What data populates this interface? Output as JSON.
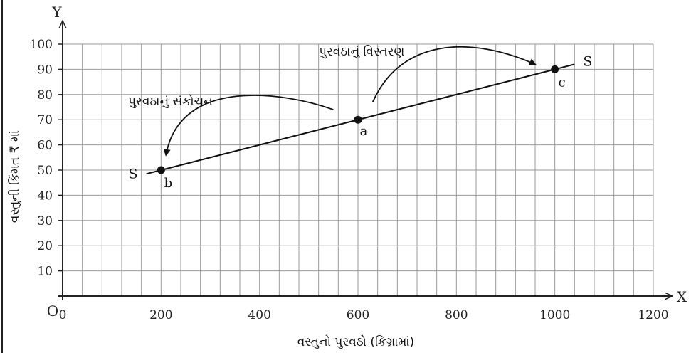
{
  "chart_data": {
    "type": "line",
    "xlabel": "વસ્તુનો પુરવઠો (કિગ્રામાં)",
    "ylabel": "વસ્તુની કિંમત ₹ માં",
    "xlim": [
      0,
      1200
    ],
    "ylim": [
      0,
      100
    ],
    "x_ticks": [
      0,
      200,
      400,
      600,
      800,
      1000,
      1200
    ],
    "y_ticks": [
      10,
      20,
      30,
      40,
      50,
      60,
      70,
      80,
      90,
      100
    ],
    "x_minor_step": 40,
    "y_minor_step": 10,
    "grid": true,
    "origin_label": "O",
    "x_axis_letter": "X",
    "y_axis_letter": "Y",
    "series": [
      {
        "name": "S",
        "x": [
          170,
          1040
        ],
        "y": [
          48.5,
          92
        ]
      }
    ],
    "curve_labels": {
      "start": "S",
      "end": "S"
    },
    "points": [
      {
        "label": "b",
        "x": 200,
        "y": 50
      },
      {
        "label": "a",
        "x": 600,
        "y": 70
      },
      {
        "label": "c",
        "x": 1000,
        "y": 90
      }
    ],
    "annotations": [
      {
        "text": "પુરવઠાનું સંકોચન",
        "arrow_from": [
          550,
          74
        ],
        "arrow_to": [
          210,
          56
        ]
      },
      {
        "text": "પુરવઠાનું વિસ્તરણ",
        "arrow_from": [
          630,
          77
        ],
        "arrow_to": [
          960,
          92
        ]
      }
    ],
    "colors": {
      "grid": "#9a9a9a",
      "axis": "#222222",
      "line": "#111111"
    }
  }
}
